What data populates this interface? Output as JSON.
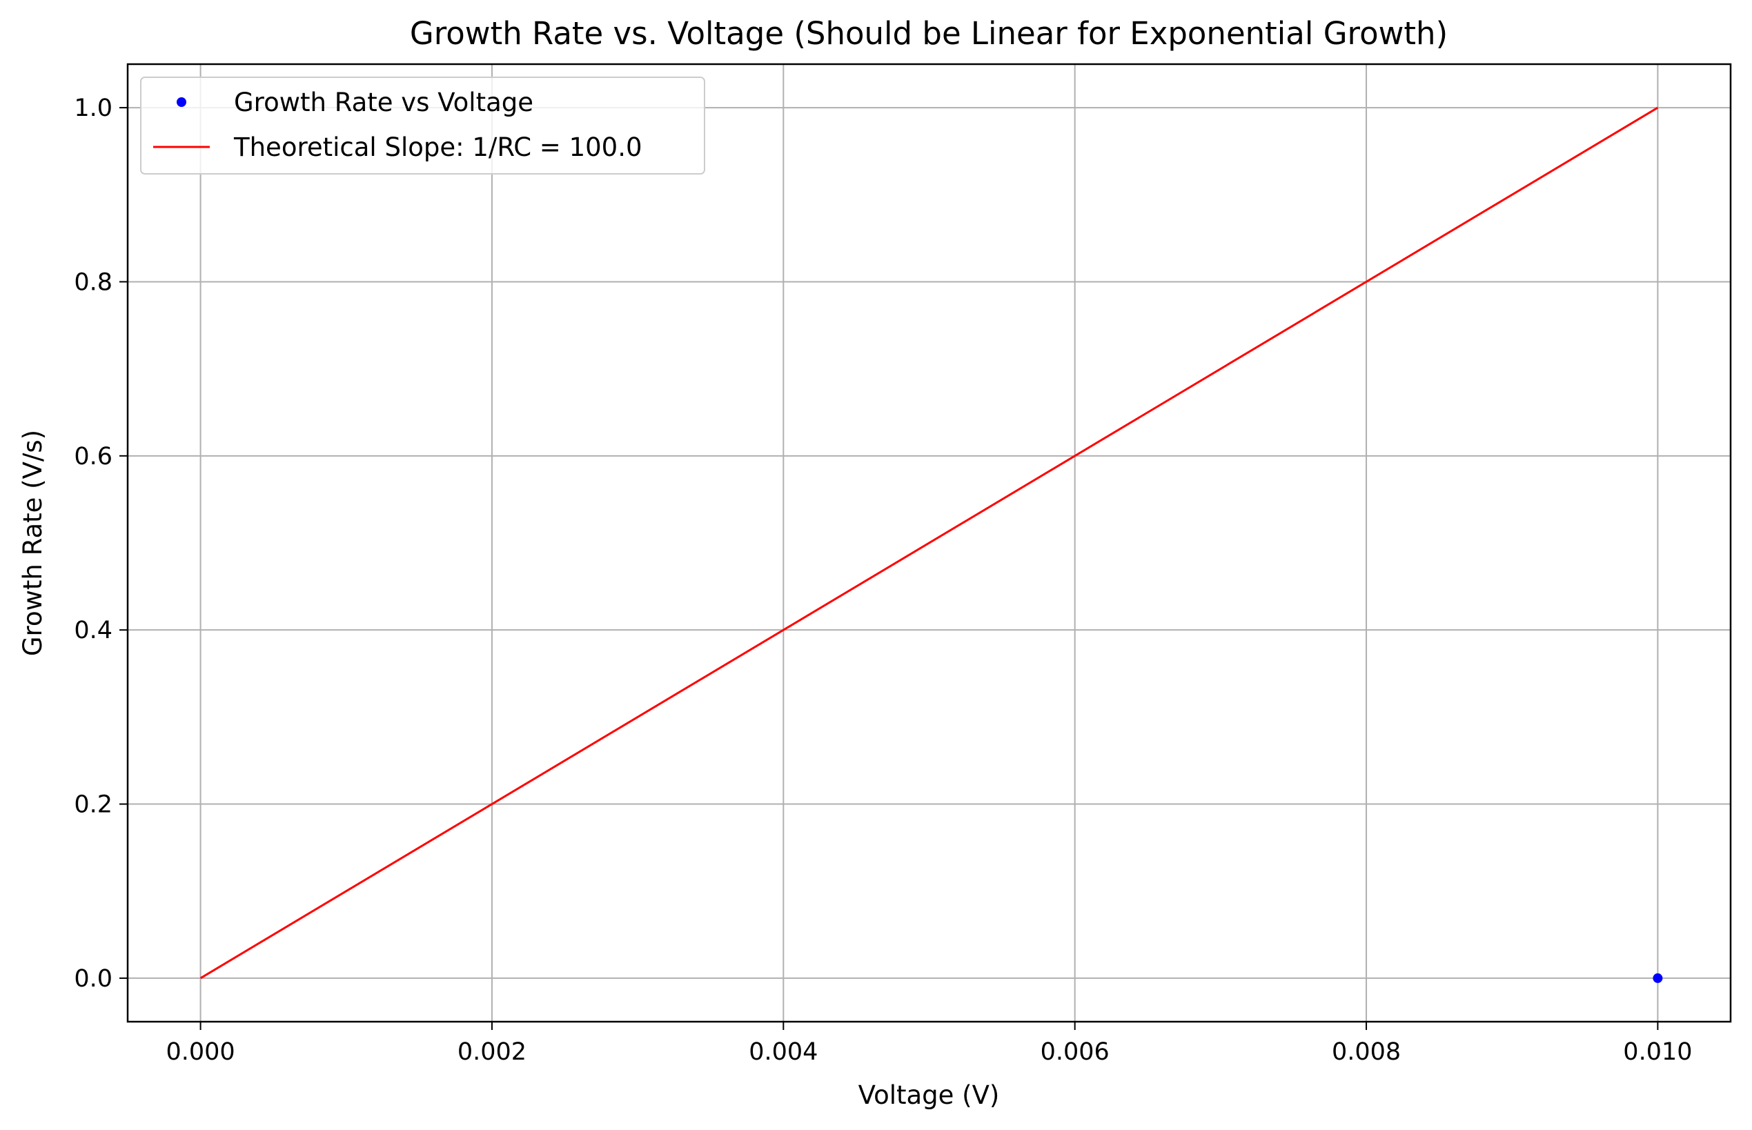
{
  "chart_data": {
    "type": "line",
    "title": "Growth Rate vs. Voltage (Should be Linear for Exponential Growth)",
    "xlabel": "Voltage (V)",
    "ylabel": "Growth Rate (V/s)",
    "xlim": [
      -0.0005,
      0.0105
    ],
    "ylim": [
      -0.05,
      1.05
    ],
    "grid": true,
    "legend_position": "top-left",
    "x_ticks": [
      0.0,
      0.002,
      0.004,
      0.006,
      0.008,
      0.01
    ],
    "x_tick_labels": [
      "0.000",
      "0.002",
      "0.004",
      "0.006",
      "0.008",
      "0.010"
    ],
    "y_ticks": [
      0.0,
      0.2,
      0.4,
      0.6,
      0.8,
      1.0
    ],
    "y_tick_labels": [
      "0.0",
      "0.2",
      "0.4",
      "0.6",
      "0.8",
      "1.0"
    ],
    "series": [
      {
        "name": "Growth Rate vs Voltage",
        "kind": "scatter",
        "color": "#0000ff",
        "x": [
          0.01
        ],
        "y": [
          0.0
        ]
      },
      {
        "name": "Theoretical Slope: 1/RC = 100.0",
        "kind": "line",
        "color": "#ff0000",
        "x": [
          0.0,
          0.01
        ],
        "y": [
          0.0,
          1.0
        ]
      }
    ]
  }
}
